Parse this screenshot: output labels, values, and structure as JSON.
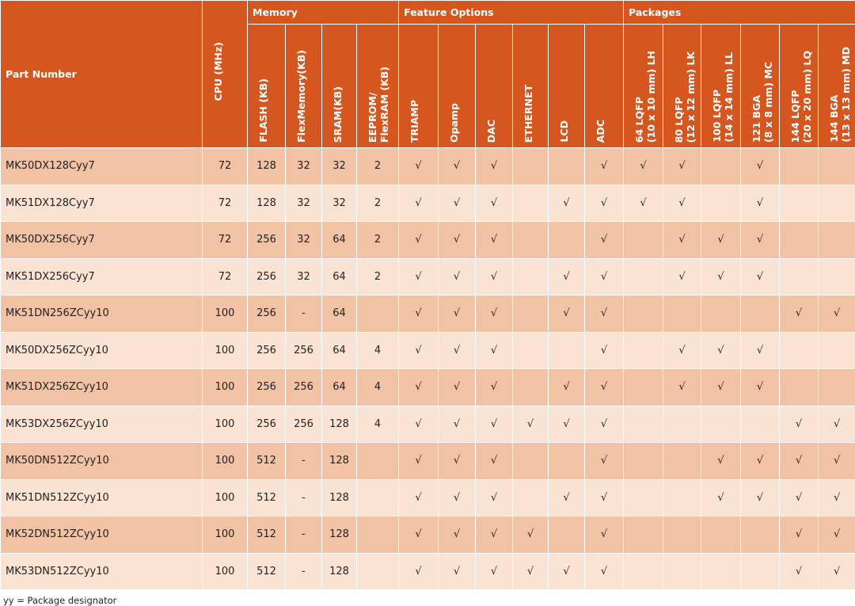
{
  "table": {
    "part_header": "Part Number",
    "groups": [
      {
        "label": "Memory",
        "span": 4
      },
      {
        "label": "Feature Options",
        "span": 6
      },
      {
        "label": "Packages",
        "span": 6
      }
    ],
    "columns": [
      "CPU (MHz)",
      "FLASH (KB)",
      "FlexMemory(KB)",
      "SRAM(KB)",
      "EEPROM/\nFlexRAM (KB)",
      "TRIAMP",
      "Opamp",
      "DAC",
      "ETHERNET",
      "LCD",
      "ADC",
      "64  LQFP\n(10 x 10 mm) LH",
      "80 LQFP\n(12 x 12 mm) LK",
      "100  LQFP\n(14 x 14 mm) LL",
      "121 BGA\n(8 x 8 mm) MC",
      "144  LQFP\n(20 x 20 mm) LQ",
      "144  BGA\n(13 x 13 mm) MD"
    ],
    "rows": [
      [
        "MK50DX128Cyy7",
        "72",
        "128",
        "32",
        "32",
        "2",
        "√",
        "√",
        "√",
        null,
        null,
        "√",
        "√",
        "√",
        null,
        "√",
        null,
        null
      ],
      [
        "MK51DX128Cyy7",
        "72",
        "128",
        "32",
        "32",
        "2",
        "√",
        "√",
        "√",
        null,
        "√",
        "√",
        "√",
        "√",
        null,
        "√",
        null,
        null
      ],
      [
        "MK50DX256Cyy7",
        "72",
        "256",
        "32",
        "64",
        "2",
        "√",
        "√",
        "√",
        null,
        null,
        "√",
        null,
        "√",
        "√",
        "√",
        null,
        null
      ],
      [
        "MK51DX256Cyy7",
        "72",
        "256",
        "32",
        "64",
        "2",
        "√",
        "√",
        "√",
        null,
        "√",
        "√",
        null,
        "√",
        "√",
        "√",
        null,
        null
      ],
      [
        "MK51DN256ZCyy10",
        "100",
        "256",
        "-",
        "64",
        null,
        "√",
        "√",
        "√",
        null,
        "√",
        "√",
        null,
        null,
        null,
        null,
        "√",
        "√"
      ],
      [
        "MK50DX256ZCyy10",
        "100",
        "256",
        "256",
        "64",
        "4",
        "√",
        "√",
        "√",
        null,
        null,
        "√",
        null,
        "√",
        "√",
        "√",
        null,
        null
      ],
      [
        "MK51DX256ZCyy10",
        "100",
        "256",
        "256",
        "64",
        "4",
        "√",
        "√",
        "√",
        null,
        "√",
        "√",
        null,
        "√",
        "√",
        "√",
        null,
        null
      ],
      [
        "MK53DX256ZCyy10",
        "100",
        "256",
        "256",
        "128",
        "4",
        "√",
        "√",
        "√",
        "√",
        "√",
        "√",
        null,
        null,
        null,
        null,
        "√",
        "√"
      ],
      [
        "MK50DN512ZCyy10",
        "100",
        "512",
        "-",
        "128",
        null,
        "√",
        "√",
        "√",
        null,
        null,
        "√",
        null,
        null,
        "√",
        "√",
        "√",
        "√"
      ],
      [
        "MK51DN512ZCyy10",
        "100",
        "512",
        "-",
        "128",
        null,
        "√",
        "√",
        "√",
        null,
        "√",
        "√",
        null,
        null,
        "√",
        "√",
        "√",
        "√"
      ],
      [
        "MK52DN512ZCyy10",
        "100",
        "512",
        "-",
        "128",
        null,
        "√",
        "√",
        "√",
        "√",
        null,
        "√",
        null,
        null,
        null,
        null,
        "√",
        "√"
      ],
      [
        "MK53DN512ZCyy10",
        "100",
        "512",
        "-",
        "128",
        null,
        "√",
        "√",
        "√",
        "√",
        "√",
        "√",
        null,
        null,
        null,
        null,
        "√",
        "√"
      ]
    ],
    "footnote": "yy = Package designator"
  }
}
